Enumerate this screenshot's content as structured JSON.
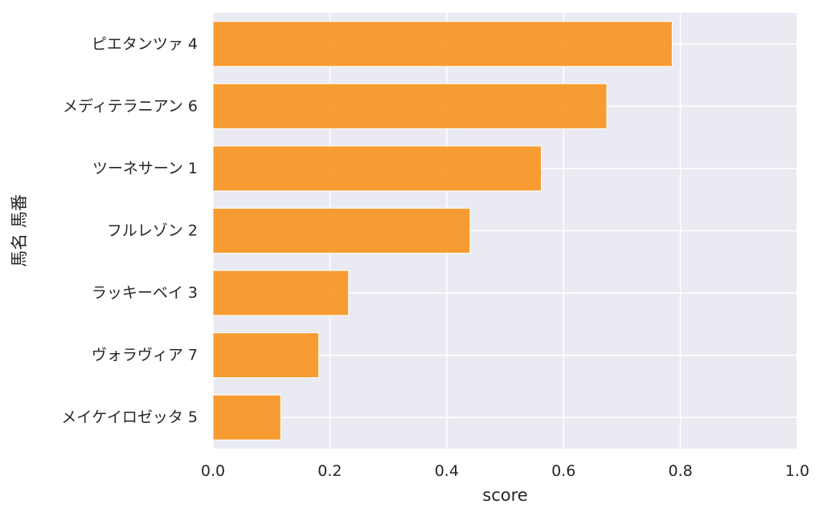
{
  "chart_data": {
    "type": "bar",
    "orientation": "horizontal",
    "categories": [
      "ピエタンツァ 4",
      "メディテラニアン 6",
      "ツーネサーン 1",
      "フルレゾン 2",
      "ラッキーベイ 3",
      "ヴォラヴィア 7",
      "メイケイロゼッタ 5"
    ],
    "values": [
      0.786,
      0.674,
      0.562,
      0.44,
      0.232,
      0.181,
      0.116
    ],
    "xlabel": "score",
    "ylabel": "馬名 馬番",
    "xlim": [
      0.0,
      1.0
    ],
    "xticks": [
      "0.0",
      "0.2",
      "0.4",
      "0.6",
      "0.8",
      "1.0"
    ],
    "grid": true,
    "colors": {
      "bar": "#F7941D",
      "background": "#EAEAF2",
      "grid": "#FFFFFF"
    }
  }
}
